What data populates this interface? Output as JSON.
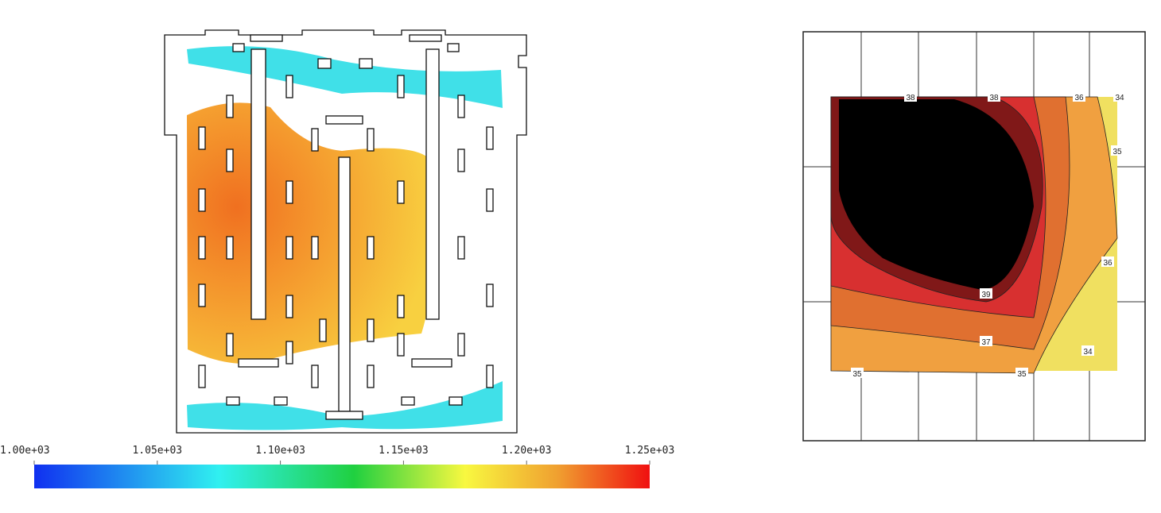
{
  "chart_data": [
    {
      "type": "contour",
      "clim": [
        1000,
        1250
      ],
      "colorbar_ticks": [
        {
          "value": 1000,
          "label": "1.00e+03"
        },
        {
          "value": 1050,
          "label": "1.05e+03"
        },
        {
          "value": 1100,
          "label": "1.10e+03"
        },
        {
          "value": 1150,
          "label": "1.15e+03"
        },
        {
          "value": 1200,
          "label": "1.20e+03"
        },
        {
          "value": 1250,
          "label": "1.25e+03"
        }
      ]
    },
    {
      "type": "contour",
      "contour_labels": [
        38,
        38,
        36,
        34,
        35,
        36,
        39,
        37,
        34,
        35,
        35
      ]
    }
  ]
}
